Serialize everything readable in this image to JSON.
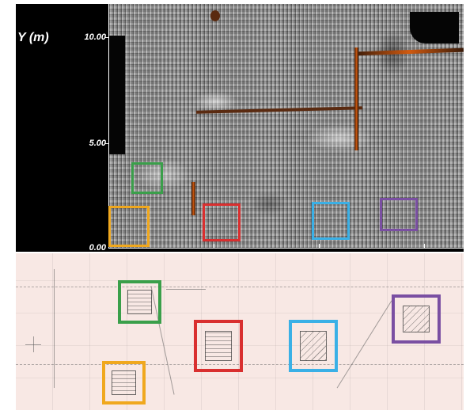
{
  "radar": {
    "y_axis_title": "Y (m)",
    "y_ticks": [
      "10.00",
      "5.00",
      "0.00"
    ]
  },
  "markers": [
    {
      "color": "#3a9f4a"
    },
    {
      "color": "#f0a81e"
    },
    {
      "color": "#d92f2f"
    },
    {
      "color": "#3ab0e6"
    },
    {
      "color": "#7a4fa2"
    }
  ]
}
